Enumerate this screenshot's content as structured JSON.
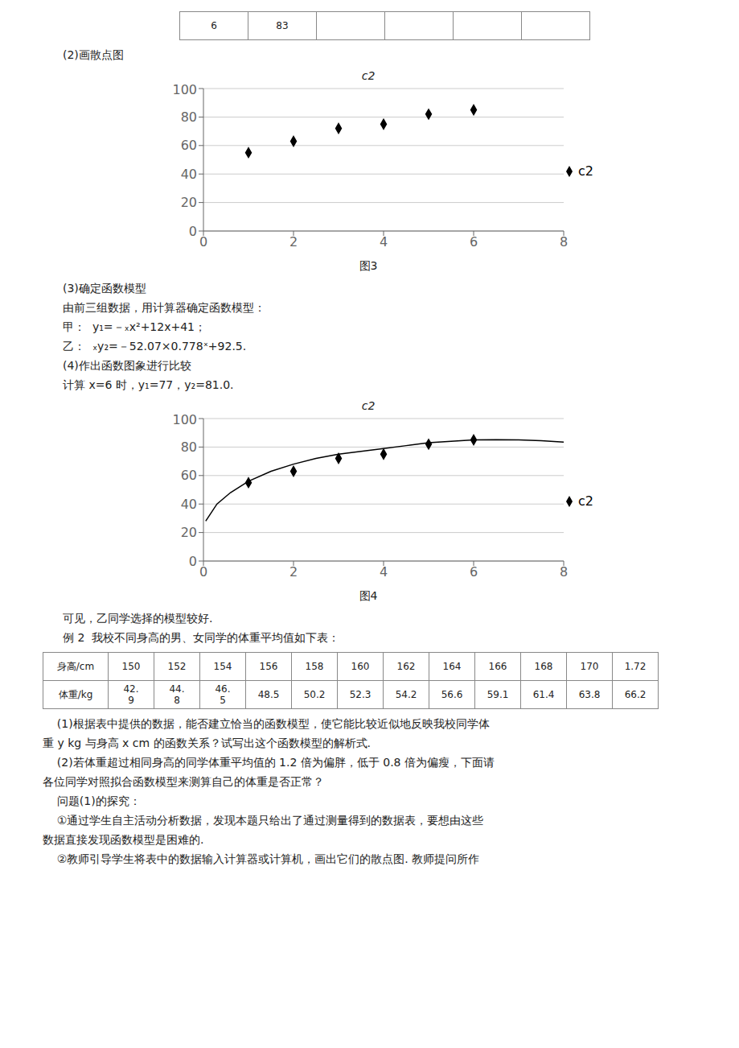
{
  "tables": [
    [
      [
        "6",
        "83",
        null,
        null,
        null,
        null
      ]
    ],
    [
      [
        "身高/cm",
        "150",
        "152",
        "154",
        "156",
        "158",
        "160",
        "162",
        "164",
        "166",
        "168",
        "170",
        "1.72"
      ],
      [
        "体重/kg",
        "42.\n9",
        "44.\n8",
        "46.\n5",
        "48.5",
        "50.2",
        "52.3",
        "54.2",
        "56.6",
        "59.1",
        "61.4",
        "63.8",
        "66.2"
      ]
    ]
  ],
  "annotations": [
    [
      "(2)画散点图"
    ],
    [
      "(3)确定函数模型",
      "由前三组数据，用计算器确定函数模型：",
      "甲：  y₁=－ₓx²+12x+41；",
      "乙：  ₓy₂=－52.07×0.778ˣ+92.5.",
      "(4)作出函数图象进行比较",
      "计算 x=6 时，y₁=77，y₂=81.0."
    ],
    [
      "可见，乙同学选择的模型较好.",
      "例 2  我校不同身高的男、女同学的体重平均值如下表："
    ],
    [
      "    (1)根据表中提供的数据，能否建立恰当的函数模型，使它能比较近似地反映我校同学体",
      "重 y kg 与身高 x cm 的函数关系？试写出这个函数模型的解析式.",
      "    (2)若体重超过相同身高的同学体重平均值的 1.2 倍为偏胖，低于 0.8 倍为偏瘦，下面请",
      "各位同学对照拟合函数模型来测算自己的体重是否正常？",
      "    问题(1)的探究：",
      "    ①通过学生自主活动分析数据，发现本题只给出了通过测量得到的数据表，要想由这些",
      "数据直接发现函数模型是困难的.",
      "    ②教师引导学生将表中的数据输入计算器或计算机，画出它们的散点图. 教师提问所作"
    ]
  ],
  "chart_data": [
    {
      "type": "scatter",
      "title": "c2",
      "annotations": [
        "图3"
      ],
      "series": [
        {
          "name": "c2",
          "type": "scatter",
          "marker": "diamond",
          "color": "#000000",
          "x": [
            1,
            2,
            3,
            4,
            5,
            6
          ],
          "values": [
            55,
            63,
            72,
            75,
            82,
            85
          ]
        }
      ],
      "xlim": [
        0,
        8
      ],
      "ylim": [
        0,
        100
      ],
      "xticks": [
        0,
        2,
        4,
        6,
        8
      ],
      "yticks": [
        0,
        20,
        40,
        60,
        80,
        100
      ],
      "grid": true,
      "legend": "right"
    },
    {
      "type": "scatter",
      "title": "c2",
      "annotations": [
        "图4"
      ],
      "series": [
        {
          "type": "line",
          "color": "#000000",
          "x": [
            0.05,
            0.3,
            0.6,
            1.0,
            1.5,
            2.0,
            2.5,
            3.0,
            3.5,
            4.0,
            4.5,
            5.0,
            5.5,
            6.0,
            6.5,
            7.0,
            7.5,
            8.0
          ],
          "values": [
            28,
            40,
            48,
            56,
            63,
            68,
            72,
            75,
            77,
            79,
            81,
            83,
            84,
            85,
            85.2,
            85,
            84.5,
            83.5
          ]
        },
        {
          "name": "c2",
          "type": "scatter",
          "marker": "diamond",
          "color": "#000000",
          "x": [
            1,
            2,
            3,
            4,
            5,
            6
          ],
          "values": [
            55,
            63,
            72,
            75,
            82,
            85
          ]
        }
      ],
      "xlim": [
        0,
        8
      ],
      "ylim": [
        0,
        100
      ],
      "xticks": [
        0,
        2,
        4,
        6,
        8
      ],
      "yticks": [
        0,
        20,
        40,
        60,
        80,
        100
      ],
      "grid": true,
      "legend": "right"
    }
  ]
}
